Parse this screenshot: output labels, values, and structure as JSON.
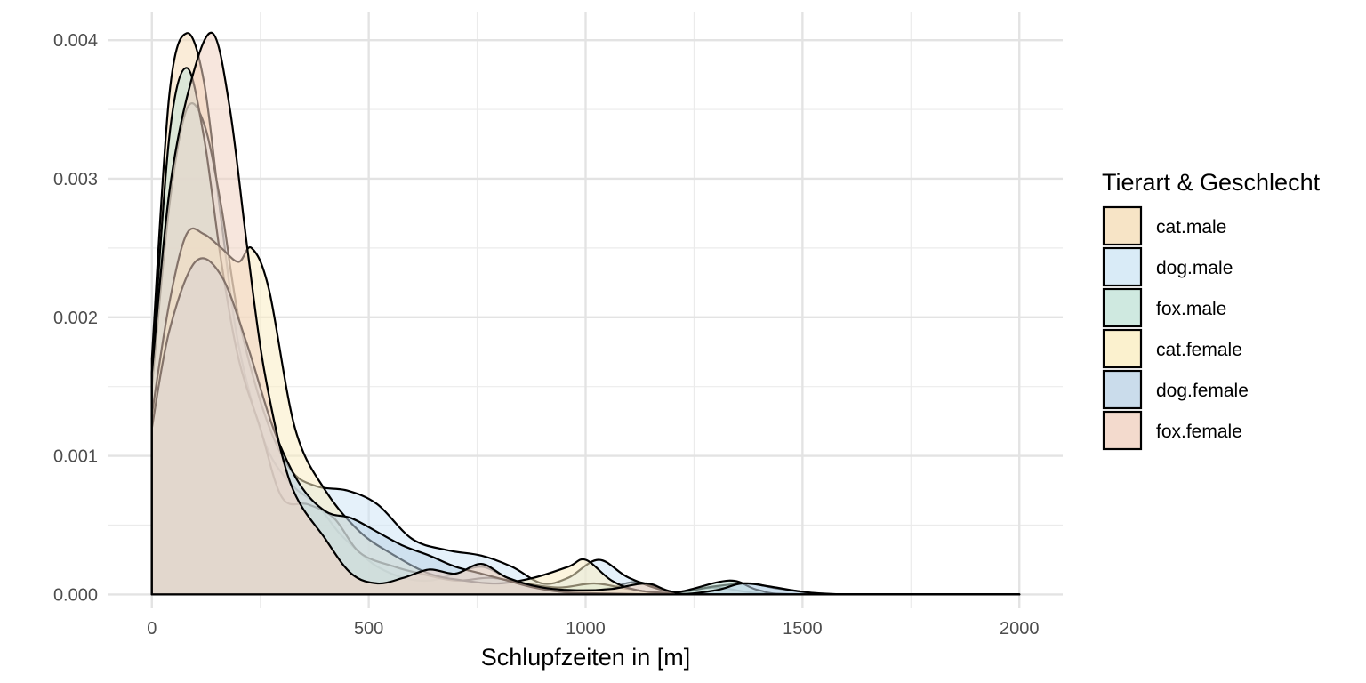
{
  "chart_data": {
    "type": "area",
    "subtype": "density",
    "title": "",
    "xlabel": "Schlupfzeiten in [m]",
    "ylabel": "",
    "xlim": [
      -100,
      2100
    ],
    "ylim": [
      -0.0001,
      0.0042
    ],
    "x_ticks": [
      0,
      500,
      1000,
      1500,
      2000
    ],
    "x_tick_labels": [
      "0",
      "500",
      "1000",
      "1500",
      "2000"
    ],
    "y_ticks": [
      0,
      0.001,
      0.002,
      0.003,
      0.004
    ],
    "y_tick_labels": [
      "0.000",
      "0.001",
      "0.002",
      "0.003",
      "0.004"
    ],
    "grid": true,
    "legend": {
      "title": "Tierart & Geschlecht",
      "position": "right"
    },
    "series": [
      {
        "name": "cat.male",
        "color": "#F5DDB8",
        "x": [
          0,
          40,
          80,
          120,
          160,
          200,
          260,
          320,
          380,
          430,
          480,
          520,
          580,
          640,
          700,
          760,
          820,
          880,
          940,
          1000,
          1060,
          1120,
          1200,
          1300,
          1400,
          1600,
          2000
        ],
        "y": [
          0.0017,
          0.0036,
          0.00405,
          0.0037,
          0.0027,
          0.0018,
          0.0011,
          0.0008,
          0.00065,
          0.00045,
          0.0003,
          0.0002,
          0.00012,
          0.0001,
          0.00015,
          0.0002,
          0.00012,
          6e-05,
          3e-05,
          2e-05,
          5e-05,
          9e-05,
          2e-05,
          5e-05,
          1e-05,
          0,
          0
        ]
      },
      {
        "name": "dog.male",
        "color": "#CFE6F5",
        "x": [
          0,
          40,
          80,
          120,
          160,
          200,
          260,
          320,
          380,
          450,
          520,
          600,
          680,
          760,
          830,
          900,
          960,
          1030,
          1100,
          1200,
          1300,
          1380,
          1450,
          1600,
          2000
        ],
        "y": [
          0.0015,
          0.0028,
          0.0035,
          0.0034,
          0.0028,
          0.002,
          0.0013,
          0.0009,
          0.00078,
          0.00075,
          0.00065,
          0.0004,
          0.00032,
          0.00028,
          0.0002,
          8e-05,
          0.00012,
          0.00025,
          0.00012,
          2e-05,
          6e-05,
          8e-05,
          4e-05,
          0,
          0
        ]
      },
      {
        "name": "fox.male",
        "color": "#C3E3D8",
        "x": [
          0,
          40,
          80,
          120,
          160,
          200,
          250,
          300,
          360,
          420,
          480,
          560,
          620,
          700,
          780,
          860,
          940,
          1020,
          1100,
          1200,
          1330,
          1400,
          1500,
          2000
        ],
        "y": [
          0.0016,
          0.0033,
          0.0038,
          0.0033,
          0.0024,
          0.0017,
          0.0012,
          0.0007,
          0.00065,
          0.00055,
          0.0003,
          0.0002,
          0.00015,
          0.0001,
          0.00012,
          8e-05,
          5e-05,
          8e-05,
          4e-05,
          1e-05,
          0.0001,
          3e-05,
          0,
          0
        ]
      },
      {
        "name": "cat.female",
        "color": "#FAEDC2",
        "x": [
          0,
          40,
          80,
          120,
          160,
          200,
          230,
          270,
          330,
          400,
          480,
          560,
          640,
          720,
          800,
          880,
          960,
          1000,
          1060,
          1120,
          1200,
          1300,
          2000
        ],
        "y": [
          0.0013,
          0.0021,
          0.0026,
          0.0026,
          0.0025,
          0.0024,
          0.0025,
          0.0022,
          0.0012,
          0.00075,
          0.00045,
          0.00028,
          0.00015,
          0.0001,
          8e-05,
          0.00012,
          0.0002,
          0.00025,
          0.0001,
          3e-05,
          1e-05,
          0,
          0
        ]
      },
      {
        "name": "dog.female",
        "color": "#BDD3E6",
        "x": [
          0,
          40,
          100,
          160,
          220,
          280,
          340,
          400,
          460,
          520,
          580,
          640,
          700,
          760,
          820,
          880,
          940,
          1000,
          1200,
          1300,
          1360,
          1420,
          1500,
          1600,
          2000
        ],
        "y": [
          0.0012,
          0.0019,
          0.0024,
          0.0023,
          0.0018,
          0.0012,
          0.0008,
          0.0006,
          0.00055,
          0.00045,
          0.00035,
          0.00028,
          0.0002,
          0.00015,
          0.0001,
          5e-05,
          2e-05,
          1e-05,
          0,
          3e-05,
          8e-05,
          6e-05,
          2e-05,
          0,
          0
        ]
      },
      {
        "name": "fox.female",
        "color": "#F0D1C1",
        "x": [
          0,
          40,
          90,
          140,
          180,
          220,
          260,
          320,
          400,
          460,
          520,
          580,
          640,
          700,
          760,
          820,
          900,
          980,
          1060,
          1140,
          1200,
          1300,
          2000
        ],
        "y": [
          0.0016,
          0.0029,
          0.0037,
          0.00405,
          0.0035,
          0.0025,
          0.0016,
          0.0008,
          0.0004,
          0.00015,
          8e-05,
          0.00012,
          0.00018,
          0.00015,
          0.00022,
          0.00012,
          5e-05,
          3e-05,
          4e-05,
          8e-05,
          2e-05,
          0,
          0
        ]
      }
    ]
  }
}
